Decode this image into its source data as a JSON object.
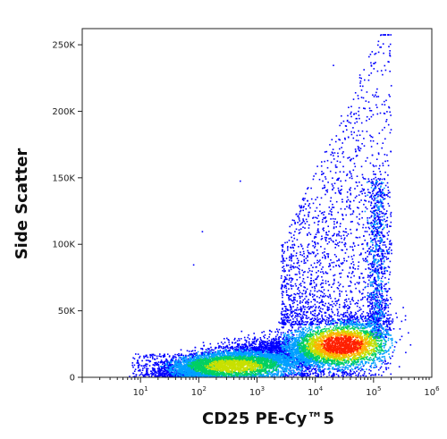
{
  "chart_data": {
    "type": "scatter",
    "style": "flow-cytometry density dot plot (pseudocolor: blue low → green → yellow → red high)",
    "xlabel": "CD25 PE-Cy™5",
    "ylabel": "Side Scatter",
    "x_scale": "log",
    "x_range": [
      1,
      1000000
    ],
    "x_ticks": [
      {
        "base": "10",
        "exp": "1"
      },
      {
        "base": "10",
        "exp": "2"
      },
      {
        "base": "10",
        "exp": "3"
      },
      {
        "base": "10",
        "exp": "4"
      },
      {
        "base": "10",
        "exp": "5"
      },
      {
        "base": "10",
        "exp": "6"
      }
    ],
    "y_scale": "linear",
    "y_range": [
      0,
      262144
    ],
    "y_ticks": [
      {
        "value": 0,
        "label": "0"
      },
      {
        "value": 50000,
        "label": "50K"
      },
      {
        "value": 100000,
        "label": "100K"
      },
      {
        "value": 150000,
        "label": "150K"
      },
      {
        "value": 200000,
        "label": "200K"
      },
      {
        "value": 250000,
        "label": "250K"
      }
    ],
    "grid": false,
    "legend": "none",
    "population": {
      "description": "main population rising from low CD25 / low SSC to a dense core near CD25 ≈ 3×10^4, SSC ≈ 25K, with a sparse tail extending to high SSC above 10^4",
      "densest_point": {
        "x": 30000,
        "y": 25000
      },
      "colormap": [
        "#0000ff",
        "#00a0ff",
        "#00d060",
        "#c8e000",
        "#ffb000",
        "#ff2000"
      ]
    }
  }
}
